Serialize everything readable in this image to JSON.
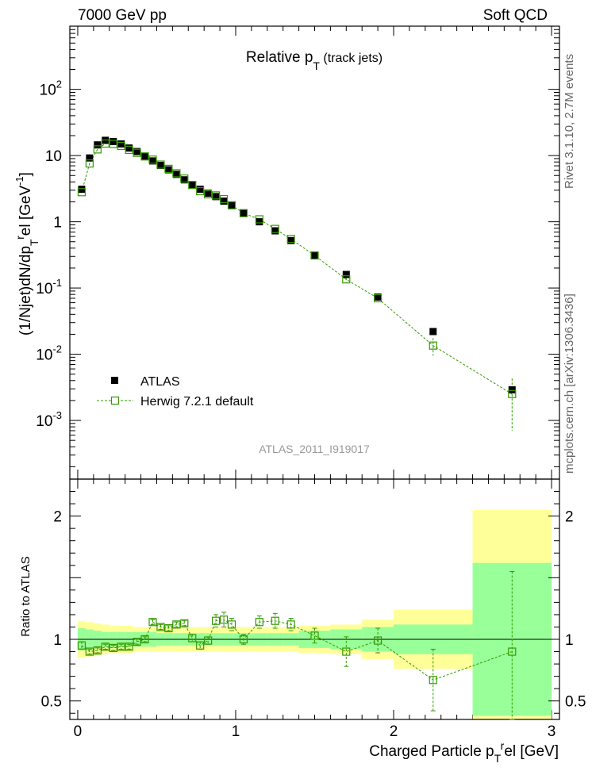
{
  "header": {
    "left": "7000 GeV pp",
    "right": "Soft QCD"
  },
  "side": {
    "rivet": "Rivet 3.1.10,  2.7M events",
    "mcplots": "mcplots.cern.ch [arXiv:1306.3436]"
  },
  "analysis_tag": "ATLAS_2011_I919017",
  "chart_data": [
    {
      "type": "scatter",
      "title": "Relative p_T (track jets)",
      "ylabel": "(1/Njet)dN/dp_T^rel [GeV^-1]",
      "yscale": "log",
      "ylim": [
        0.00013,
        900
      ],
      "xlim": [
        -0.05,
        3.05
      ],
      "y_ticks": [
        {
          "value": 0.001,
          "base": "10",
          "exp": "-3"
        },
        {
          "value": 0.01,
          "base": "10",
          "exp": "-2"
        },
        {
          "value": 0.1,
          "base": "10",
          "exp": "-1"
        },
        {
          "value": 1,
          "base": "1",
          "exp": ""
        },
        {
          "value": 10,
          "base": "10",
          "exp": ""
        },
        {
          "value": 100,
          "base": "10",
          "exp": "2"
        }
      ],
      "legend": {
        "placement": "lower-left"
      },
      "series": [
        {
          "name": "ATLAS",
          "color": "#000000",
          "marker": "filled-square",
          "x": [
            0.025,
            0.075,
            0.125,
            0.175,
            0.225,
            0.275,
            0.325,
            0.375,
            0.425,
            0.475,
            0.525,
            0.575,
            0.625,
            0.675,
            0.725,
            0.775,
            0.825,
            0.875,
            0.925,
            0.975,
            1.05,
            1.15,
            1.25,
            1.35,
            1.5,
            1.7,
            1.9,
            2.25,
            2.75
          ],
          "y": [
            3.1,
            9.2,
            14.5,
            17.0,
            16.3,
            15.0,
            13.0,
            11.5,
            9.8,
            8.3,
            7.1,
            6.1,
            5.2,
            4.3,
            3.6,
            3.1,
            2.7,
            2.4,
            2.05,
            1.75,
            1.35,
            1.0,
            0.73,
            0.52,
            0.31,
            0.16,
            0.073,
            0.022,
            0.0029
          ]
        },
        {
          "name": "Herwig 7.2.1 default",
          "color": "#339900",
          "marker": "open-square",
          "x": [
            0.025,
            0.075,
            0.125,
            0.175,
            0.225,
            0.275,
            0.325,
            0.375,
            0.425,
            0.475,
            0.525,
            0.575,
            0.625,
            0.675,
            0.725,
            0.775,
            0.825,
            0.875,
            0.925,
            0.975,
            1.05,
            1.15,
            1.25,
            1.35,
            1.5,
            1.7,
            1.9,
            2.25,
            2.75
          ],
          "y": [
            2.8,
            7.6,
            12.4,
            15.2,
            15.0,
            14.0,
            12.2,
            11.0,
            9.7,
            8.7,
            7.3,
            6.3,
            5.4,
            4.5,
            3.6,
            2.9,
            2.6,
            2.5,
            2.2,
            1.78,
            1.35,
            1.09,
            0.78,
            0.55,
            0.31,
            0.135,
            0.07,
            0.0135,
            0.0025
          ],
          "yerr": [
            0.06,
            0.15,
            0.2,
            0.2,
            0.2,
            0.2,
            0.2,
            0.2,
            0.15,
            0.15,
            0.12,
            0.1,
            0.1,
            0.08,
            0.06,
            0.06,
            0.05,
            0.05,
            0.05,
            0.04,
            0.03,
            0.03,
            0.02,
            0.02,
            0.01,
            0.008,
            0.006,
            0.004,
            0.0018
          ]
        }
      ]
    },
    {
      "type": "line",
      "ylabel": "Ratio to ATLAS",
      "xlabel": "Charged Particle p_T^rel [GeV]",
      "xlim": [
        -0.05,
        3.05
      ],
      "ylim": [
        0.35,
        2.3
      ],
      "x_ticks": [
        "0",
        "1",
        "2",
        "3"
      ],
      "y_ticks": [
        "0.5",
        "1",
        "2"
      ],
      "bands": {
        "yellow_color": "#ffff99",
        "green_color": "#99ff99",
        "edges": [
          0.0,
          0.05,
          0.1,
          0.15,
          0.2,
          0.25,
          0.3,
          0.35,
          0.4,
          0.45,
          0.5,
          0.55,
          0.6,
          0.65,
          0.7,
          0.75,
          0.8,
          0.85,
          0.9,
          0.95,
          1.0,
          1.1,
          1.2,
          1.3,
          1.4,
          1.6,
          1.8,
          2.0,
          2.5,
          3.0
        ],
        "yellow_half": [
          0.15,
          0.14,
          0.13,
          0.12,
          0.11,
          0.11,
          0.11,
          0.1,
          0.1,
          0.1,
          0.1,
          0.1,
          0.1,
          0.1,
          0.1,
          0.1,
          0.1,
          0.1,
          0.1,
          0.1,
          0.1,
          0.1,
          0.1,
          0.1,
          0.11,
          0.12,
          0.16,
          0.24,
          1.05
        ],
        "green_half": [
          0.09,
          0.08,
          0.07,
          0.06,
          0.06,
          0.06,
          0.06,
          0.06,
          0.06,
          0.06,
          0.05,
          0.05,
          0.05,
          0.05,
          0.05,
          0.05,
          0.05,
          0.05,
          0.05,
          0.05,
          0.05,
          0.05,
          0.05,
          0.05,
          0.07,
          0.08,
          0.1,
          0.12,
          0.62
        ]
      },
      "series": [
        {
          "name": "Herwig 7.2.1 default",
          "color": "#339900",
          "x": [
            0.025,
            0.075,
            0.125,
            0.175,
            0.225,
            0.275,
            0.325,
            0.375,
            0.425,
            0.475,
            0.525,
            0.575,
            0.625,
            0.675,
            0.725,
            0.775,
            0.825,
            0.875,
            0.925,
            0.975,
            1.05,
            1.15,
            1.25,
            1.35,
            1.5,
            1.7,
            1.9,
            2.25,
            2.75
          ],
          "y": [
            0.95,
            0.9,
            0.91,
            0.94,
            0.93,
            0.94,
            0.94,
            0.98,
            1.0,
            1.14,
            1.1,
            1.09,
            1.12,
            1.13,
            1.01,
            0.95,
            0.99,
            1.15,
            1.16,
            1.12,
            1.0,
            1.14,
            1.15,
            1.12,
            1.03,
            0.9,
            0.99,
            0.67,
            0.9
          ],
          "yerr": [
            0.03,
            0.02,
            0.02,
            0.02,
            0.02,
            0.02,
            0.02,
            0.02,
            0.02,
            0.02,
            0.02,
            0.02,
            0.02,
            0.02,
            0.03,
            0.03,
            0.03,
            0.05,
            0.06,
            0.05,
            0.04,
            0.05,
            0.06,
            0.05,
            0.06,
            0.12,
            0.1,
            0.25,
            0.65
          ]
        }
      ]
    }
  ]
}
